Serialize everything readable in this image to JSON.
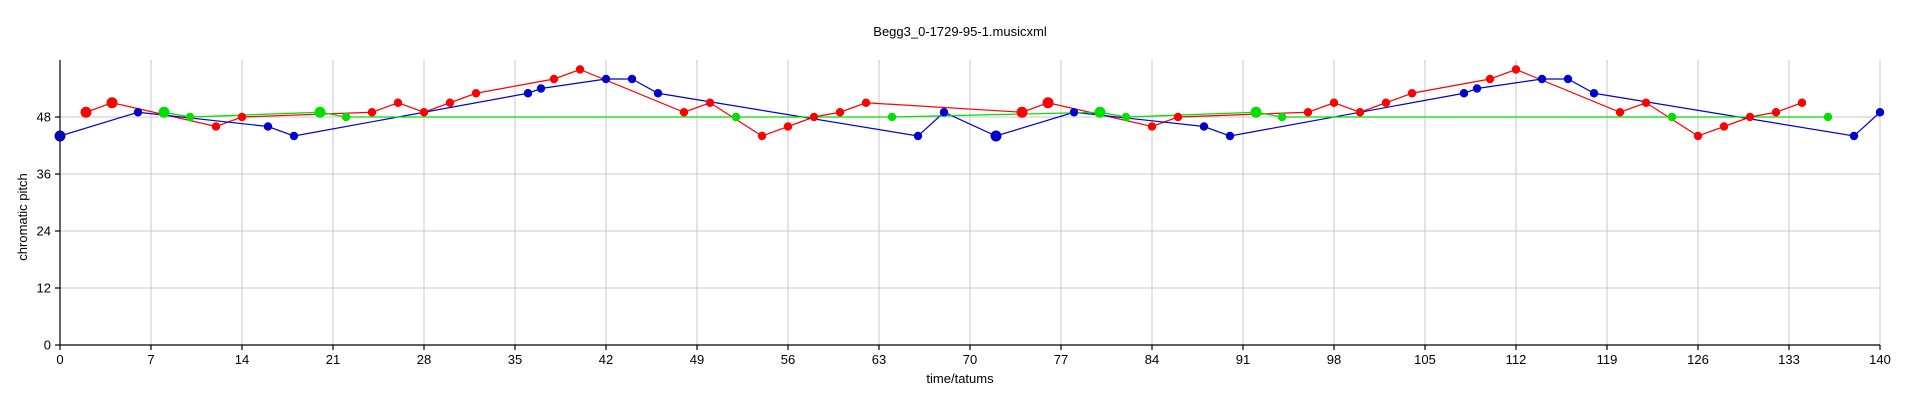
{
  "chart_data": {
    "type": "scatter",
    "title": "Begg3_0-1729-95-1.musicxml",
    "xlabel": "time/tatums",
    "ylabel": "chromatic pitch",
    "xlim": [
      0,
      140
    ],
    "ylim": [
      0,
      60
    ],
    "xticks": [
      0,
      7,
      14,
      21,
      28,
      35,
      42,
      49,
      56,
      63,
      70,
      77,
      84,
      91,
      98,
      105,
      112,
      119,
      126,
      133,
      140
    ],
    "yticks": [
      0,
      12,
      24,
      36,
      48
    ],
    "grid": true,
    "series": [
      {
        "color": "#ff0000",
        "points": [
          [
            2,
            49,
            "L"
          ],
          [
            4,
            51,
            "L"
          ],
          [
            12,
            46,
            "S"
          ],
          [
            14,
            48,
            "S"
          ],
          [
            24,
            49,
            "S"
          ],
          [
            26,
            51,
            "S"
          ],
          [
            28,
            49,
            "S"
          ],
          [
            30,
            51,
            "S"
          ],
          [
            32,
            53,
            "S"
          ],
          [
            38,
            56,
            "S"
          ],
          [
            40,
            58,
            "S"
          ],
          [
            48,
            49,
            "S"
          ],
          [
            50,
            51,
            "S"
          ],
          [
            54,
            44,
            "S"
          ],
          [
            56,
            46,
            "S"
          ],
          [
            58,
            48,
            "S"
          ],
          [
            60,
            49,
            "S"
          ],
          [
            62,
            51,
            "S"
          ],
          [
            74,
            49,
            "L"
          ],
          [
            76,
            51,
            "L"
          ],
          [
            84,
            46,
            "S"
          ],
          [
            86,
            48,
            "S"
          ],
          [
            96,
            49,
            "S"
          ],
          [
            98,
            51,
            "S"
          ],
          [
            100,
            49,
            "S"
          ],
          [
            102,
            51,
            "S"
          ],
          [
            104,
            53,
            "S"
          ],
          [
            110,
            56,
            "S"
          ],
          [
            112,
            58,
            "S"
          ],
          [
            120,
            49,
            "S"
          ],
          [
            122,
            51,
            "S"
          ],
          [
            126,
            44,
            "S"
          ],
          [
            128,
            46,
            "S"
          ],
          [
            130,
            48,
            "S"
          ],
          [
            132,
            49,
            "S"
          ],
          [
            134,
            51,
            "S"
          ]
        ]
      },
      {
        "color": "#0000cc",
        "points": [
          [
            0,
            44,
            "L"
          ],
          [
            6,
            49,
            "S"
          ],
          [
            16,
            46,
            "S"
          ],
          [
            18,
            44,
            "S"
          ],
          [
            36,
            53,
            "S"
          ],
          [
            37,
            54,
            "S"
          ],
          [
            42,
            56,
            "S"
          ],
          [
            44,
            56,
            "S"
          ],
          [
            46,
            53,
            "S"
          ],
          [
            66,
            44,
            "S"
          ],
          [
            68,
            49,
            "S"
          ],
          [
            72,
            44,
            "L"
          ],
          [
            78,
            49,
            "S"
          ],
          [
            88,
            46,
            "S"
          ],
          [
            90,
            44,
            "S"
          ],
          [
            108,
            53,
            "S"
          ],
          [
            109,
            54,
            "S"
          ],
          [
            114,
            56,
            "S"
          ],
          [
            116,
            56,
            "S"
          ],
          [
            118,
            53,
            "S"
          ],
          [
            138,
            44,
            "S"
          ],
          [
            140,
            49,
            "S"
          ]
        ]
      },
      {
        "color": "#00dd00",
        "points": [
          [
            8,
            49,
            "L"
          ],
          [
            10,
            48,
            "S"
          ],
          [
            20,
            49,
            "L"
          ],
          [
            22,
            48,
            "S"
          ],
          [
            52,
            48,
            "S"
          ],
          [
            64,
            48,
            "S"
          ],
          [
            80,
            49,
            "L"
          ],
          [
            82,
            48,
            "S"
          ],
          [
            92,
            49,
            "L"
          ],
          [
            94,
            48,
            "S"
          ],
          [
            124,
            48,
            "S"
          ],
          [
            136,
            48,
            "S"
          ]
        ]
      }
    ]
  }
}
